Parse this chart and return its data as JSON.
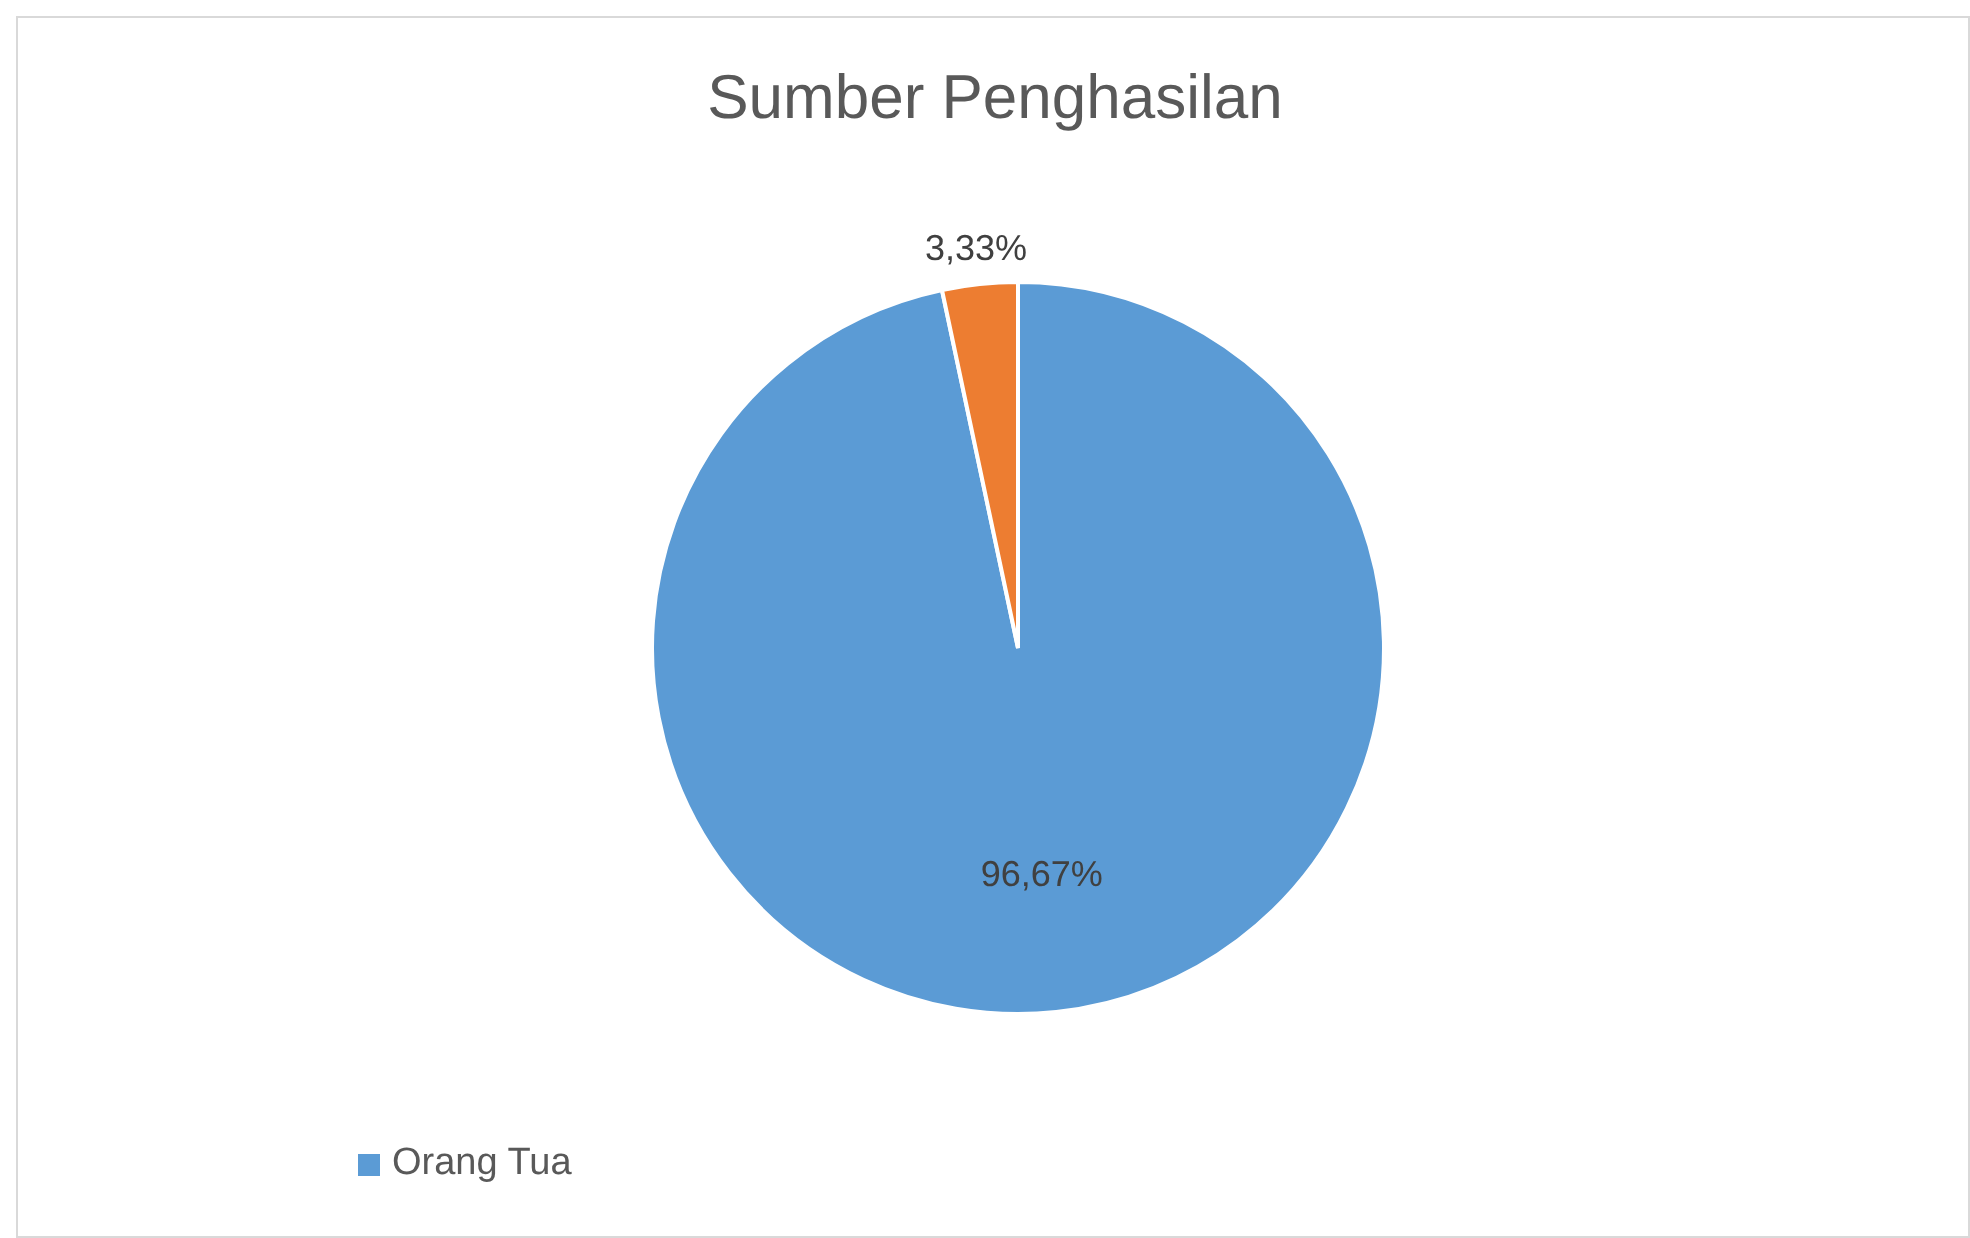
{
  "chart_data": {
    "type": "pie",
    "title": "Sumber Penghasilan",
    "categories": [
      "Orang Tua",
      null
    ],
    "values": [
      96.67,
      3.33
    ],
    "value_labels": [
      "96,67%",
      "3,33%"
    ],
    "colors": [
      "#5b9bd5",
      "#ed7d31"
    ],
    "legend": "bottom left"
  }
}
